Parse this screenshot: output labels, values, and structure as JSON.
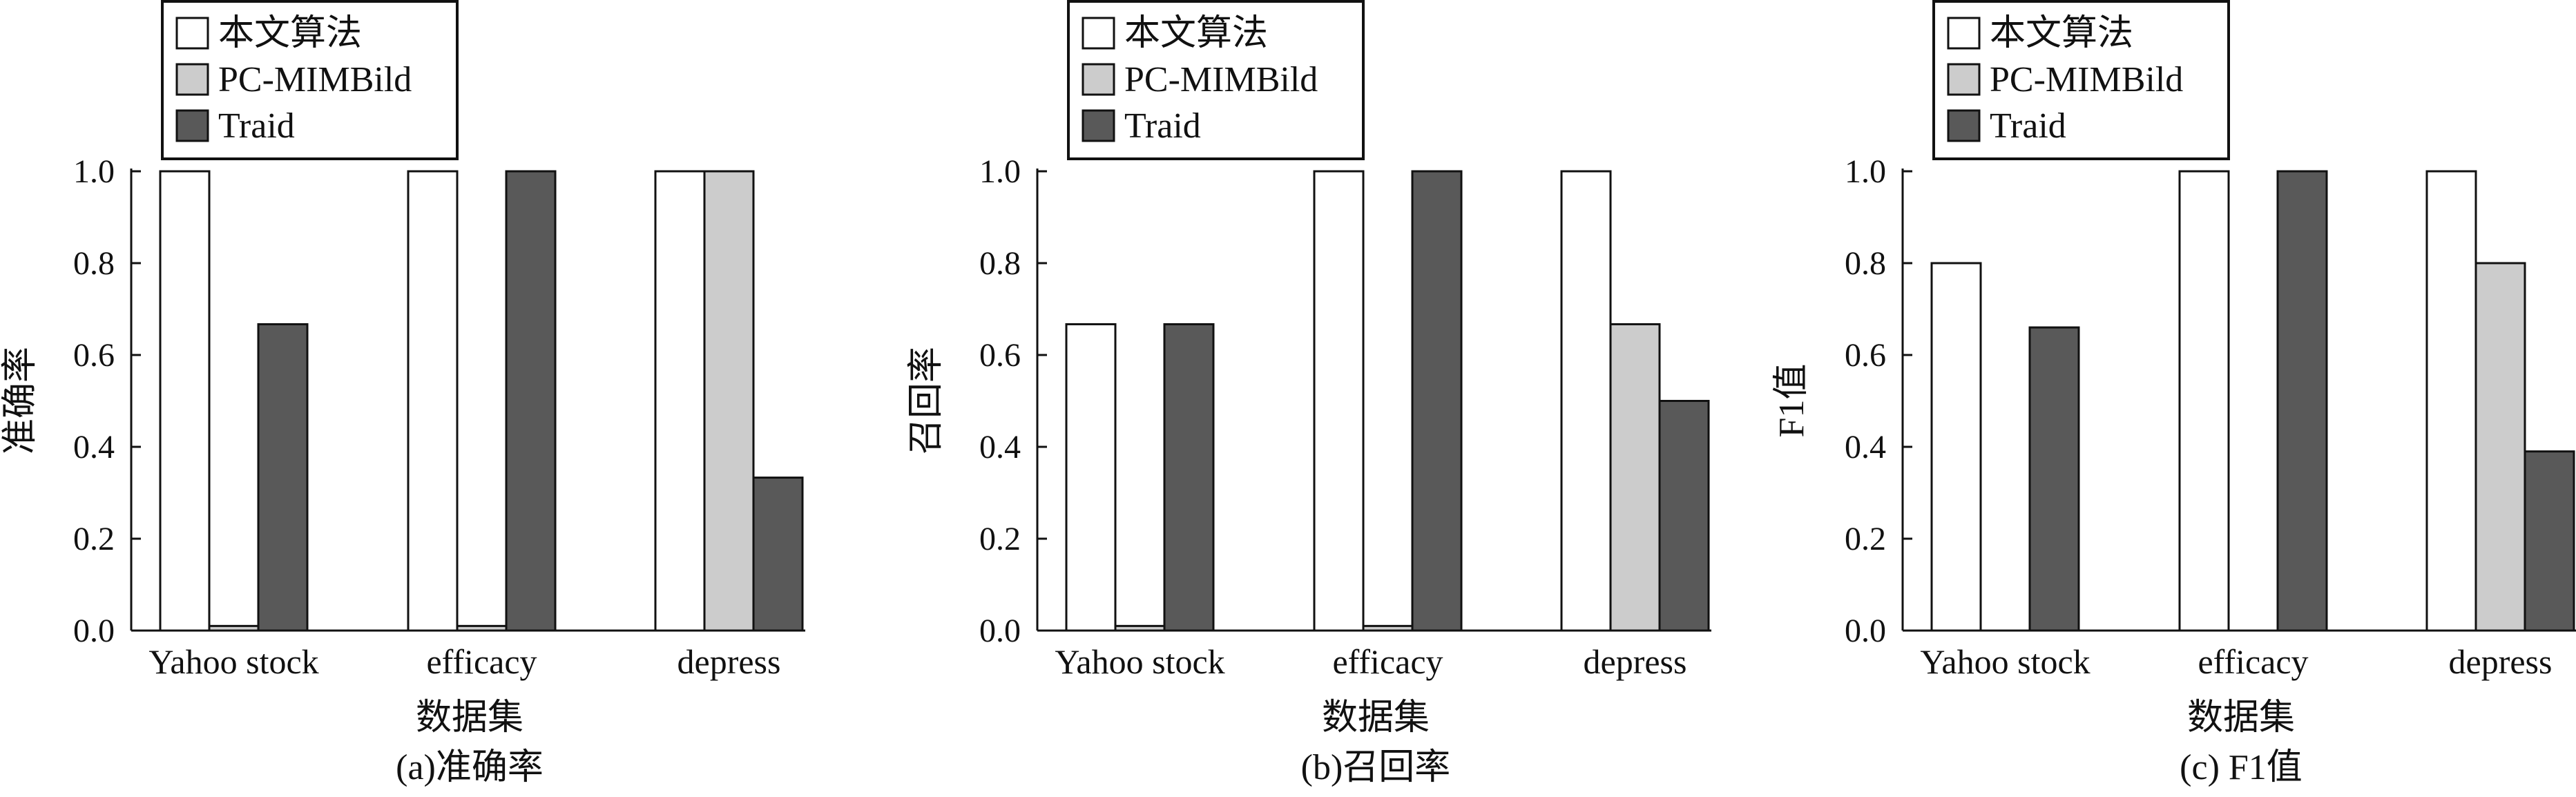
{
  "colors": {
    "series": [
      "#ffffff",
      "#cccccc",
      "#595959"
    ],
    "stroke": "#111111",
    "background": "#ffffff"
  },
  "legend": {
    "labels": [
      "本文算法",
      "PC-MIMBild",
      "Traid"
    ],
    "placement": "top-left"
  },
  "chart_data": [
    {
      "type": "bar",
      "caption": "(a)准确率",
      "ylabel": "准确率",
      "xlabel": "数据集",
      "categories": [
        "Yahoo stock",
        "efficacy",
        "depress"
      ],
      "ylim": [
        0,
        1.0
      ],
      "yticks": [
        "0.0",
        "0.2",
        "0.4",
        "0.6",
        "0.8",
        "1.0"
      ],
      "series": [
        {
          "name": "本文算法",
          "values": [
            1.0,
            1.0,
            1.0
          ]
        },
        {
          "name": "PC-MIMBild",
          "values": [
            0.01,
            0.01,
            1.0
          ]
        },
        {
          "name": "Traid",
          "values": [
            0.667,
            1.0,
            0.333
          ]
        }
      ]
    },
    {
      "type": "bar",
      "caption": "(b)召回率",
      "ylabel": "召回率",
      "xlabel": "数据集",
      "categories": [
        "Yahoo stock",
        "efficacy",
        "depress"
      ],
      "ylim": [
        0,
        1.0
      ],
      "yticks": [
        "0.0",
        "0.2",
        "0.4",
        "0.6",
        "0.8",
        "1.0"
      ],
      "series": [
        {
          "name": "本文算法",
          "values": [
            0.667,
            1.0,
            1.0
          ]
        },
        {
          "name": "PC-MIMBild",
          "values": [
            0.01,
            0.01,
            0.667
          ]
        },
        {
          "name": "Traid",
          "values": [
            0.667,
            1.0,
            0.5
          ]
        }
      ]
    },
    {
      "type": "bar",
      "caption": "(c) F1值",
      "ylabel": "F1值",
      "xlabel": "数据集",
      "categories": [
        "Yahoo stock",
        "efficacy",
        "depress"
      ],
      "ylim": [
        0,
        1.0
      ],
      "yticks": [
        "0.0",
        "0.2",
        "0.4",
        "0.6",
        "0.8",
        "1.0"
      ],
      "series": [
        {
          "name": "本文算法",
          "values": [
            0.8,
            1.0,
            1.0
          ]
        },
        {
          "name": "PC-MIMBild",
          "values": [
            0,
            0,
            0.8
          ]
        },
        {
          "name": "Traid",
          "values": [
            0.66,
            1.0,
            0.39
          ]
        }
      ]
    }
  ]
}
